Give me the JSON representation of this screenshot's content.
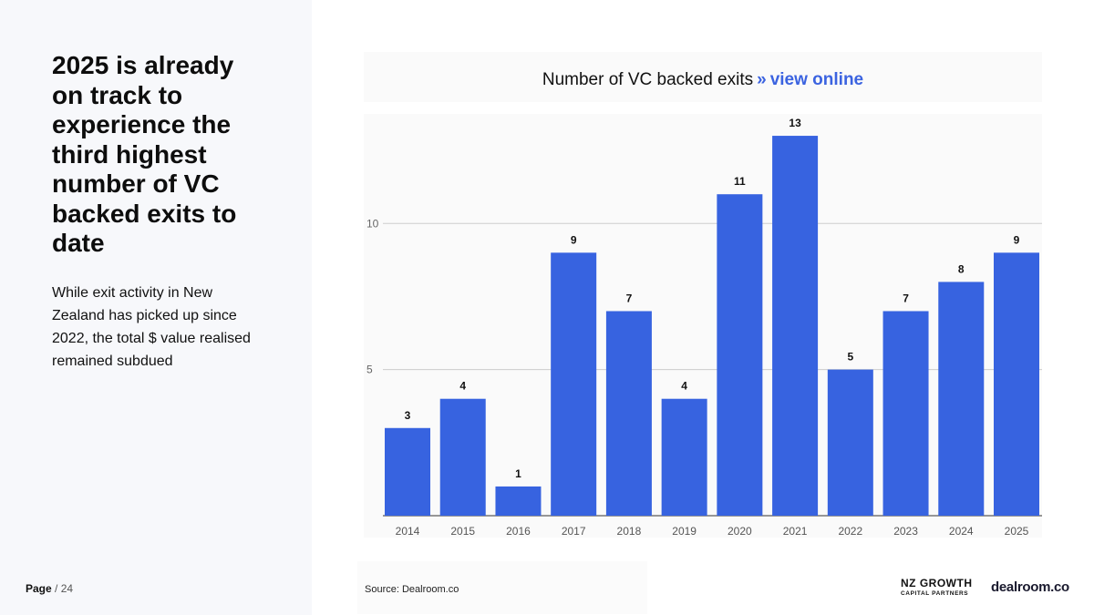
{
  "headline": "2025 is already on track to experience the third highest number of VC backed exits to date",
  "body": "While exit activity in New Zealand has picked up since 2022, the total $ value realised remained subdued",
  "page": {
    "current": "Page",
    "total": "/ 24"
  },
  "chart_header": {
    "title": "Number of VC backed exits",
    "separator": "»",
    "link": "view online"
  },
  "source": "Source:  Dealroom.co",
  "logos": {
    "nzgcp_line1": "NZ GROWTH",
    "nzgcp_line2": "CAPITAL PARTNERS",
    "dealroom": "dealroom.co"
  },
  "colors": {
    "bar": "#3763e0",
    "accent": "#3b63e0"
  },
  "chart_data": {
    "type": "bar",
    "title": "Number of VC backed exits",
    "categories": [
      "2014",
      "2015",
      "2016",
      "2017",
      "2018",
      "2019",
      "2020",
      "2021",
      "2022",
      "2023",
      "2024",
      "2025"
    ],
    "values": [
      3,
      4,
      1,
      9,
      7,
      4,
      11,
      13,
      5,
      7,
      8,
      9
    ],
    "ylim": [
      0,
      13.75
    ],
    "yticks": [
      5,
      10
    ],
    "xlabel": "",
    "ylabel": "",
    "grid": true,
    "legend": "none"
  }
}
